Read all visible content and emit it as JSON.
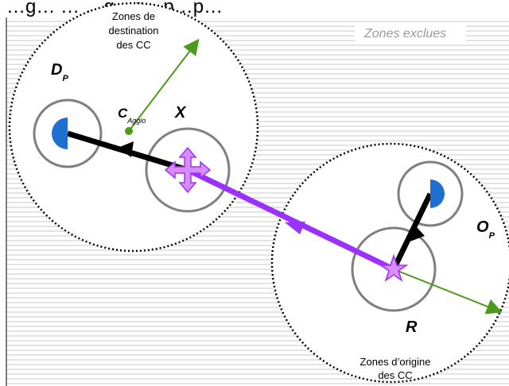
{
  "title": "…g… … …g…g…p…p…",
  "labels": {
    "destination_zone": [
      "Zones de",
      "destination",
      "des CC"
    ],
    "origin_zone": [
      "Zones d’origine",
      "des CC"
    ],
    "excluded_zones": "Zones exclues",
    "dp_main": "D",
    "dp_sub": "P",
    "op_main": "O",
    "op_sub": "P",
    "cagglo_main": "C",
    "cagglo_sub": "Agglo",
    "x": "X",
    "r": "R"
  },
  "colors": {
    "hatch": "#c8c8c8",
    "zone_border": "#000000",
    "circle": "#7f7f7f",
    "half_disc": "#1f6fd1",
    "black_arrow": "#000000",
    "purple_arrow": "#9b30ff",
    "green_arrow": "#4d9a1c",
    "marker_fill": "#d98cff"
  }
}
